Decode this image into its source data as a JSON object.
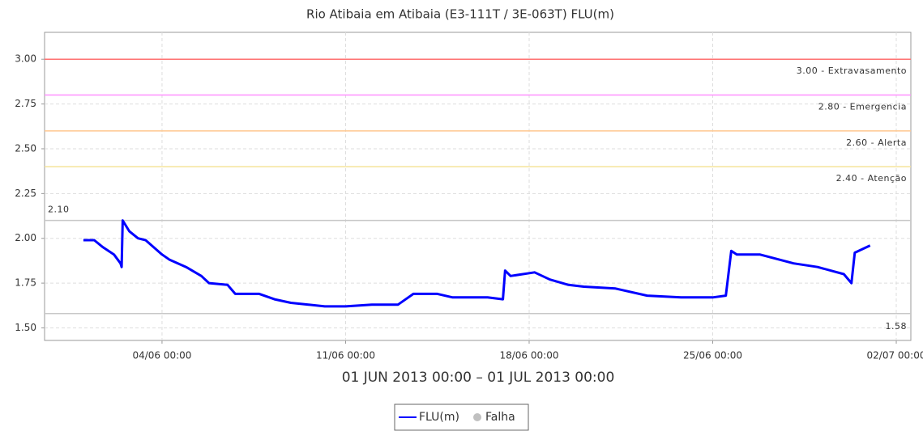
{
  "chart_data": {
    "type": "line",
    "title": "Rio Atibaia em Atibaia (E3-111T / 3E-063T) FLU(m)",
    "subtitle": "01 JUN 2013 00:00 – 01 JUL 2013 00:00",
    "x": [
      "2013-06-01T00:00",
      "2013-06-01T10:00",
      "2013-06-01T18:00",
      "2013-06-02T04:00",
      "2013-06-02T10:00",
      "2013-06-02T11:00",
      "2013-06-02T12:00",
      "2013-06-02T18:00",
      "2013-06-03T02:00",
      "2013-06-03T09:00",
      "2013-06-04T00:00",
      "2013-06-04T07:00",
      "2013-06-04T22:00",
      "2013-06-05T12:00",
      "2013-06-05T19:00",
      "2013-06-06T12:00",
      "2013-06-06T19:00",
      "2013-06-07T17:00",
      "2013-06-08T07:00",
      "2013-06-08T22:00",
      "2013-06-09T14:00",
      "2013-06-10T05:00",
      "2013-06-11T00:00",
      "2013-06-12T00:00",
      "2013-06-13T00:00",
      "2013-06-13T14:00",
      "2013-06-14T12:00",
      "2013-06-15T02:00",
      "2013-06-16T10:00",
      "2013-06-17T00:00",
      "2013-06-17T02:00",
      "2013-06-17T07:00",
      "2013-06-18T05:00",
      "2013-06-18T19:00",
      "2013-06-19T12:00",
      "2013-06-20T02:00",
      "2013-06-21T07:00",
      "2013-06-22T12:00",
      "2013-06-23T19:00",
      "2013-06-25T00:00",
      "2013-06-25T12:00",
      "2013-06-25T17:00",
      "2013-06-25T22:00",
      "2013-06-26T19:00",
      "2013-06-28T02:00",
      "2013-06-29T00:00",
      "2013-06-30T00:00",
      "2013-06-30T07:00",
      "2013-06-30T10:00",
      "2013-07-01T00:00"
    ],
    "series": [
      {
        "name": "FLU(m)",
        "color": "#0000ff",
        "values": [
          1.99,
          1.99,
          1.95,
          1.91,
          1.86,
          1.84,
          2.1,
          2.04,
          2.0,
          1.99,
          1.91,
          1.88,
          1.84,
          1.79,
          1.75,
          1.74,
          1.69,
          1.69,
          1.66,
          1.64,
          1.63,
          1.62,
          1.62,
          1.63,
          1.63,
          1.69,
          1.69,
          1.67,
          1.67,
          1.66,
          1.82,
          1.79,
          1.81,
          1.77,
          1.74,
          1.73,
          1.72,
          1.68,
          1.67,
          1.67,
          1.68,
          1.93,
          1.91,
          1.91,
          1.86,
          1.84,
          1.8,
          1.75,
          1.92,
          1.96
        ]
      }
    ],
    "legend_items": [
      {
        "name": "Falha",
        "color": "#c0c0c0"
      }
    ],
    "xlim": [
      "2013-05-30T12:30",
      "2013-07-02T13:20"
    ],
    "xticks": [
      {
        "value": "2013-06-04T00:00",
        "label": "04/06 00:00"
      },
      {
        "value": "2013-06-11T00:00",
        "label": "11/06 00:00"
      },
      {
        "value": "2013-06-18T00:00",
        "label": "18/06 00:00"
      },
      {
        "value": "2013-06-25T00:00",
        "label": "25/06 00:00"
      },
      {
        "value": "2013-07-02T00:00",
        "label": "02/07 00:00"
      }
    ],
    "ylim": [
      1.43,
      3.15
    ],
    "yticks": [
      {
        "value": 1.5,
        "label": "1.50"
      },
      1.75,
      {
        "value": 2.0,
        "label": "2.00"
      },
      2.25,
      {
        "value": 2.5,
        "label": "2.50"
      },
      2.75,
      {
        "value": 3.0,
        "label": "3.00"
      }
    ],
    "grid": true,
    "thresholds": [
      {
        "value": 3.0,
        "label": "3.00 - Extravasamento",
        "color": "#ff7070"
      },
      {
        "value": 2.8,
        "label": "2.80 - Emergencia",
        "color": "#ff90ff"
      },
      {
        "value": 2.6,
        "label": "2.60 - Alerta",
        "color": "#ffc890"
      },
      {
        "value": 2.4,
        "label": "2.40 - Atenção",
        "color": "#f5e39a"
      }
    ],
    "max_line": {
      "value": 2.1,
      "label": "2.10",
      "color": "#c8c8c8"
    },
    "min_line": {
      "value": 1.58,
      "label": "1.58",
      "color": "#c8c8c8"
    }
  }
}
